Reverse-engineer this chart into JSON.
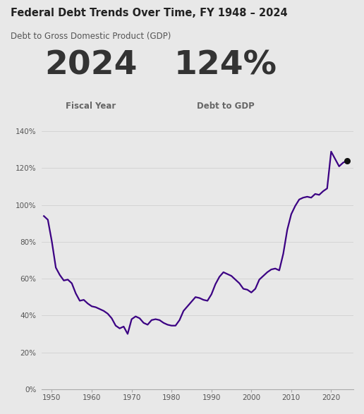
{
  "title": "Federal Debt Trends Over Time, FY 1948 – 2024",
  "subtitle": "Debt to Gross Domestic Product (GDP)",
  "highlight_year": "2024",
  "highlight_value": "124%",
  "highlight_label1": "Fiscal Year",
  "highlight_label2": "Debt to GDP",
  "line_color": "#3b0083",
  "background_color": "#e8e8e8",
  "plot_bg_color": "#e8e8e8",
  "dot_color": "#111111",
  "years": [
    1948,
    1949,
    1950,
    1951,
    1952,
    1953,
    1954,
    1955,
    1956,
    1957,
    1958,
    1959,
    1960,
    1961,
    1962,
    1963,
    1964,
    1965,
    1966,
    1967,
    1968,
    1969,
    1970,
    1971,
    1972,
    1973,
    1974,
    1975,
    1976,
    1977,
    1978,
    1979,
    1980,
    1981,
    1982,
    1983,
    1984,
    1985,
    1986,
    1987,
    1988,
    1989,
    1990,
    1991,
    1992,
    1993,
    1994,
    1995,
    1996,
    1997,
    1998,
    1999,
    2000,
    2001,
    2002,
    2003,
    2004,
    2005,
    2006,
    2007,
    2008,
    2009,
    2010,
    2011,
    2012,
    2013,
    2014,
    2015,
    2016,
    2017,
    2018,
    2019,
    2020,
    2021,
    2022,
    2023,
    2024
  ],
  "values": [
    94.0,
    92.0,
    80.2,
    66.0,
    62.0,
    59.0,
    59.5,
    57.5,
    52.0,
    48.0,
    48.5,
    46.5,
    45.0,
    44.5,
    43.5,
    42.5,
    41.0,
    38.5,
    34.5,
    33.0,
    34.0,
    30.0,
    38.0,
    39.5,
    38.5,
    36.0,
    35.0,
    37.5,
    38.0,
    37.5,
    36.0,
    35.0,
    34.5,
    34.5,
    37.5,
    42.5,
    45.0,
    47.5,
    50.0,
    49.5,
    48.5,
    48.0,
    51.5,
    57.0,
    61.0,
    63.5,
    62.5,
    61.5,
    59.5,
    57.5,
    54.5,
    54.0,
    52.5,
    54.5,
    59.5,
    61.5,
    63.5,
    65.0,
    65.5,
    64.5,
    73.5,
    86.5,
    95.0,
    99.5,
    103.0,
    104.0,
    104.5,
    104.0,
    106.0,
    105.5,
    107.5,
    109.0,
    129.0,
    125.0,
    121.0,
    123.0,
    124.0
  ]
}
